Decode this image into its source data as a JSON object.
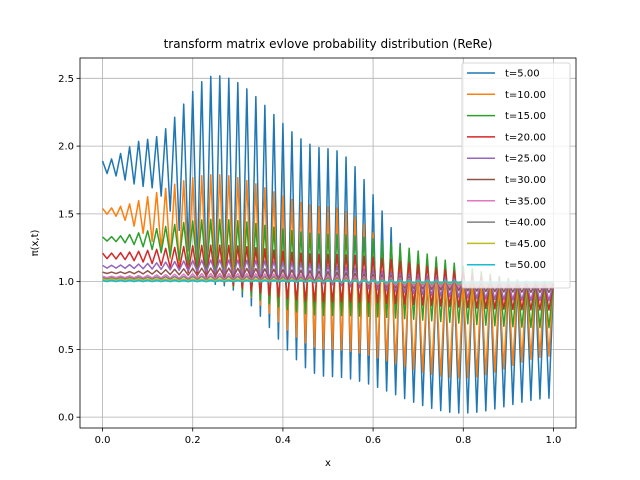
{
  "chart_data": {
    "type": "line",
    "title": "transform matrix evlove probability distribution (ReRe)",
    "xlabel": "x",
    "ylabel": "π(x,t)",
    "xlim": [
      -0.05,
      1.05
    ],
    "ylim": [
      -0.08,
      2.65
    ],
    "x_ticks": [
      "0.0",
      "0.2",
      "0.4",
      "0.6",
      "0.8",
      "1.0"
    ],
    "x_tick_values": [
      0.0,
      0.2,
      0.4,
      0.6,
      0.8,
      1.0
    ],
    "y_ticks": [
      "0.0",
      "0.5",
      "1.0",
      "1.5",
      "2.0",
      "2.5"
    ],
    "y_tick_values": [
      0.0,
      0.5,
      1.0,
      1.5,
      2.0,
      2.5
    ],
    "grid": true,
    "legend_position": "upper-right",
    "samples": 101,
    "oscillation": "alternates between adjacent sample points",
    "series": [
      {
        "name": "t=5.00",
        "color": "#1f77b4",
        "upper_at": [
          [
            0.0,
            1.89
          ],
          [
            0.1,
            2.05
          ],
          [
            0.25,
            2.52
          ],
          [
            0.5,
            1.98
          ],
          [
            0.75,
            1.0
          ],
          [
            1.0,
            0.98
          ]
        ],
        "lower_at": [
          [
            0.0,
            1.8
          ],
          [
            0.1,
            1.7
          ],
          [
            0.25,
            0.98
          ],
          [
            0.5,
            0.3
          ],
          [
            0.8,
            0.03
          ],
          [
            1.0,
            0.14
          ]
        ]
      },
      {
        "name": "t=10.00",
        "color": "#ff7f0e",
        "upper_at": [
          [
            0.0,
            1.54
          ],
          [
            0.25,
            1.79
          ],
          [
            0.5,
            1.55
          ],
          [
            0.75,
            1.0
          ],
          [
            1.0,
            0.99
          ]
        ],
        "lower_at": [
          [
            0.0,
            1.5
          ],
          [
            0.25,
            1.0
          ],
          [
            0.5,
            0.5
          ],
          [
            0.8,
            0.29
          ],
          [
            1.0,
            0.45
          ]
        ]
      },
      {
        "name": "t=15.00",
        "color": "#2ca02c",
        "upper_at": [
          [
            0.0,
            1.33
          ],
          [
            0.25,
            1.46
          ],
          [
            0.5,
            1.35
          ],
          [
            1.0,
            0.99
          ]
        ],
        "lower_at": [
          [
            0.0,
            1.3
          ],
          [
            0.5,
            0.75
          ],
          [
            1.0,
            0.66
          ]
        ]
      },
      {
        "name": "t=20.00",
        "color": "#d62728",
        "upper_at": [
          [
            0.0,
            1.21
          ],
          [
            0.25,
            1.27
          ],
          [
            0.5,
            1.2
          ],
          [
            1.0,
            0.99
          ]
        ],
        "lower_at": [
          [
            0.0,
            1.17
          ],
          [
            0.5,
            0.85
          ],
          [
            1.0,
            0.79
          ]
        ]
      },
      {
        "name": "t=25.00",
        "color": "#9467bd",
        "upper_at": [
          [
            0.0,
            1.12
          ],
          [
            0.25,
            1.16
          ],
          [
            1.0,
            0.99
          ]
        ],
        "lower_at": [
          [
            0.0,
            1.1
          ],
          [
            1.0,
            0.86
          ]
        ]
      },
      {
        "name": "t=30.00",
        "color": "#8c564b",
        "upper_at": [
          [
            0.0,
            1.07
          ],
          [
            0.25,
            1.1
          ],
          [
            1.0,
            0.99
          ]
        ],
        "lower_at": [
          [
            0.0,
            1.06
          ],
          [
            1.0,
            0.92
          ]
        ]
      },
      {
        "name": "t=35.00",
        "color": "#e377c2",
        "upper_at": [
          [
            0.0,
            1.04
          ],
          [
            0.25,
            1.06
          ],
          [
            1.0,
            1.0
          ]
        ],
        "lower_at": [
          [
            0.0,
            1.03
          ],
          [
            1.0,
            0.95
          ]
        ]
      },
      {
        "name": "t=40.00",
        "color": "#7f7f7f",
        "upper_at": [
          [
            0.0,
            1.03
          ],
          [
            0.25,
            1.04
          ],
          [
            1.0,
            1.0
          ]
        ],
        "lower_at": [
          [
            0.0,
            1.02
          ],
          [
            1.0,
            0.97
          ]
        ]
      },
      {
        "name": "t=45.00",
        "color": "#bcbd22",
        "upper_at": [
          [
            0.0,
            1.02
          ],
          [
            0.25,
            1.02
          ],
          [
            1.0,
            1.0
          ]
        ],
        "lower_at": [
          [
            0.0,
            1.01
          ],
          [
            1.0,
            0.98
          ]
        ]
      },
      {
        "name": "t=50.00",
        "color": "#17becf",
        "upper_at": [
          [
            0.0,
            1.01
          ],
          [
            0.25,
            1.01
          ],
          [
            1.0,
            1.0
          ]
        ],
        "lower_at": [
          [
            0.0,
            1.0
          ],
          [
            1.0,
            0.99
          ]
        ]
      }
    ]
  }
}
